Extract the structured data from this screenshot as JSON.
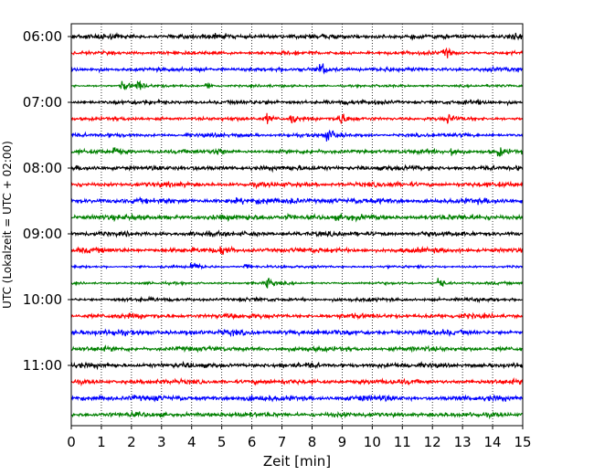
{
  "chart_data": {
    "type": "line",
    "title": "",
    "xlabel": "Zeit  [min]",
    "ylabel": "UTC (Lokalzeit = UTC + 02:00)",
    "xlim": [
      0,
      15
    ],
    "x_ticks": [
      "0",
      "1",
      "2",
      "3",
      "4",
      "5",
      "6",
      "7",
      "8",
      "9",
      "10",
      "11",
      "12",
      "13",
      "14",
      "15"
    ],
    "y_ticks": [
      "06:00",
      "07:00",
      "08:00",
      "09:00",
      "10:00",
      "11:00"
    ],
    "grid": "vertical-dotted",
    "colors": [
      "#000000",
      "#ff0000",
      "#0000ff",
      "#008000"
    ],
    "traces": [
      {
        "start": "06:00",
        "color": "#000000",
        "amplitude": 0.8,
        "events": [
          [
            14.7,
            1.5
          ]
        ]
      },
      {
        "start": "06:15",
        "color": "#ff0000",
        "amplitude": 0.6,
        "events": [
          [
            12.4,
            2.0
          ]
        ]
      },
      {
        "start": "06:30",
        "color": "#0000ff",
        "amplitude": 0.7,
        "events": [
          [
            8.3,
            2.5
          ]
        ]
      },
      {
        "start": "06:45",
        "color": "#008000",
        "amplitude": 0.4,
        "events": [
          [
            1.7,
            2.0
          ],
          [
            2.2,
            2.0
          ],
          [
            4.5,
            1.5
          ]
        ]
      },
      {
        "start": "07:00",
        "color": "#000000",
        "amplitude": 0.7,
        "events": []
      },
      {
        "start": "07:15",
        "color": "#ff0000",
        "amplitude": 0.6,
        "events": [
          [
            6.5,
            1.6
          ],
          [
            7.3,
            2.5
          ],
          [
            8.9,
            2.5
          ],
          [
            12.5,
            1.5
          ]
        ]
      },
      {
        "start": "07:30",
        "color": "#0000ff",
        "amplitude": 0.6,
        "events": [
          [
            8.5,
            2.5
          ]
        ]
      },
      {
        "start": "07:45",
        "color": "#008000",
        "amplitude": 0.7,
        "events": [
          [
            1.4,
            1.5
          ],
          [
            4.8,
            1.5
          ],
          [
            12.6,
            2.0
          ],
          [
            14.2,
            1.6
          ]
        ]
      },
      {
        "start": "08:00",
        "color": "#000000",
        "amplitude": 0.8,
        "events": []
      },
      {
        "start": "08:15",
        "color": "#ff0000",
        "amplitude": 0.8,
        "events": []
      },
      {
        "start": "08:30",
        "color": "#0000ff",
        "amplitude": 0.9,
        "events": [
          [
            7.3,
            1.6
          ]
        ]
      },
      {
        "start": "08:45",
        "color": "#008000",
        "amplitude": 0.9,
        "events": [
          [
            7.2,
            1.3
          ]
        ]
      },
      {
        "start": "09:00",
        "color": "#000000",
        "amplitude": 0.8,
        "events": []
      },
      {
        "start": "09:15",
        "color": "#ff0000",
        "amplitude": 0.8,
        "events": [
          [
            5.0,
            1.8
          ]
        ]
      },
      {
        "start": "09:30",
        "color": "#0000ff",
        "amplitude": 0.4,
        "events": [
          [
            4.0,
            2.5
          ],
          [
            5.8,
            1.4
          ]
        ]
      },
      {
        "start": "09:45",
        "color": "#008000",
        "amplitude": 0.4,
        "events": [
          [
            6.5,
            2.0
          ],
          [
            12.2,
            2.5
          ]
        ]
      },
      {
        "start": "10:00",
        "color": "#000000",
        "amplitude": 0.6,
        "events": []
      },
      {
        "start": "10:15",
        "color": "#ff0000",
        "amplitude": 0.8,
        "events": []
      },
      {
        "start": "10:30",
        "color": "#0000ff",
        "amplitude": 0.9,
        "events": []
      },
      {
        "start": "10:45",
        "color": "#008000",
        "amplitude": 0.8,
        "events": []
      },
      {
        "start": "11:00",
        "color": "#000000",
        "amplitude": 0.8,
        "events": []
      },
      {
        "start": "11:15",
        "color": "#ff0000",
        "amplitude": 0.8,
        "events": []
      },
      {
        "start": "11:30",
        "color": "#0000ff",
        "amplitude": 0.9,
        "events": []
      },
      {
        "start": "11:45",
        "color": "#008000",
        "amplitude": 0.8,
        "events": []
      }
    ]
  }
}
